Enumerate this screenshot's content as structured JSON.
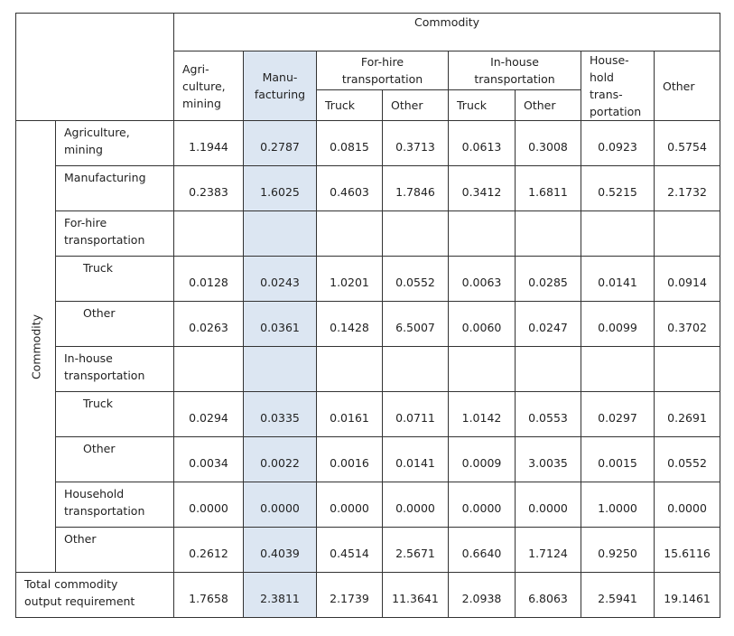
{
  "header": {
    "commodity_title": "Commodity",
    "col_agri": "Agri-\nculture,\nmining",
    "col_manu": "Manu-\nfacturing",
    "col_forhire": "For-hire\ntransportation",
    "col_inhouse": "In-house\ntransportation",
    "col_household": "House-\nhold\ntrans-\nportation",
    "col_other": "Other",
    "sub_truck": "Truck",
    "sub_other": "Other"
  },
  "side_label": "Commodity",
  "rows": [
    {
      "label": "Agriculture,\nmining",
      "values": [
        "1.1944",
        "0.2787",
        "0.0815",
        "0.3713",
        "0.0613",
        "0.3008",
        "0.0923",
        "0.5754"
      ]
    },
    {
      "label": "Manufacturing",
      "values": [
        "0.2383",
        "1.6025",
        "0.4603",
        "1.7846",
        "0.3412",
        "1.6811",
        "0.5215",
        "2.1732"
      ]
    },
    {
      "label": "For-hire\ntransportation",
      "values": []
    },
    {
      "label": "Truck",
      "values": [
        "0.0128",
        "0.0243",
        "1.0201",
        "0.0552",
        "0.0063",
        "0.0285",
        "0.0141",
        "0.0914"
      ]
    },
    {
      "label": "Other",
      "values": [
        "0.0263",
        "0.0361",
        "0.1428",
        "6.5007",
        "0.0060",
        "0.0247",
        "0.0099",
        "0.3702"
      ]
    },
    {
      "label": "In-house\ntransportation",
      "values": []
    },
    {
      "label": "Truck",
      "values": [
        "0.0294",
        "0.0335",
        "0.0161",
        "0.0711",
        "1.0142",
        "0.0553",
        "0.0297",
        "0.2691"
      ]
    },
    {
      "label": "Other",
      "values": [
        "0.0034",
        "0.0022",
        "0.0016",
        "0.0141",
        "0.0009",
        "3.0035",
        "0.0015",
        "0.0552"
      ]
    },
    {
      "label": "Household\ntransportation",
      "values": [
        "0.0000",
        "0.0000",
        "0.0000",
        "0.0000",
        "0.0000",
        "0.0000",
        "1.0000",
        "0.0000"
      ]
    },
    {
      "label": "Other",
      "values": [
        "0.2612",
        "0.4039",
        "0.4514",
        "2.5671",
        "0.6640",
        "1.7124",
        "0.9250",
        "15.6116"
      ]
    }
  ],
  "total": {
    "label": "Total commodity\noutput requirement",
    "values": [
      "1.7658",
      "2.3811",
      "2.1739",
      "11.3641",
      "2.0938",
      "6.8063",
      "2.5941",
      "19.1461"
    ]
  },
  "colors": {
    "highlight": "#dce6f2",
    "border": "#333333"
  }
}
